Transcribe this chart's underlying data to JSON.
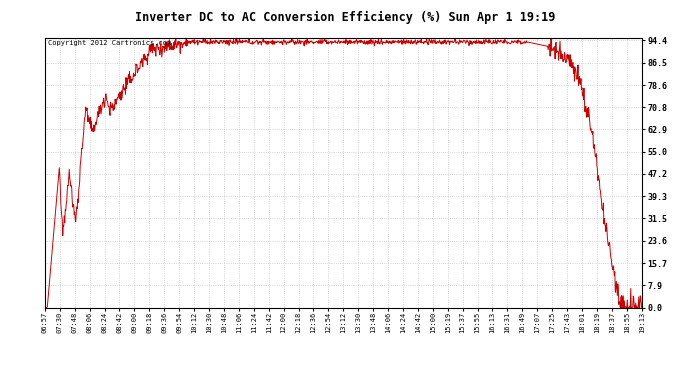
{
  "title": "Inverter DC to AC Conversion Efficiency (%) Sun Apr 1 19:19",
  "copyright": "Copyright 2012 Cartronics.com",
  "yticks": [
    0.0,
    7.9,
    15.7,
    23.6,
    31.5,
    39.3,
    47.2,
    55.0,
    62.9,
    70.8,
    78.6,
    86.5,
    94.4
  ],
  "ymin": 0.0,
  "ymax": 94.4,
  "line_color": "#cc0000",
  "bg_color": "#ffffff",
  "grid_color": "#bbbbbb",
  "xtick_labels": [
    "06:57",
    "07:30",
    "07:48",
    "08:06",
    "08:24",
    "08:42",
    "09:00",
    "09:18",
    "09:36",
    "09:54",
    "10:12",
    "10:30",
    "10:48",
    "11:06",
    "11:24",
    "11:42",
    "12:00",
    "12:18",
    "12:36",
    "12:54",
    "13:12",
    "13:30",
    "13:48",
    "14:06",
    "14:24",
    "14:42",
    "15:00",
    "15:19",
    "15:37",
    "15:55",
    "16:13",
    "16:31",
    "16:49",
    "17:07",
    "17:25",
    "17:43",
    "18:01",
    "18:19",
    "18:37",
    "18:55",
    "19:13"
  ]
}
